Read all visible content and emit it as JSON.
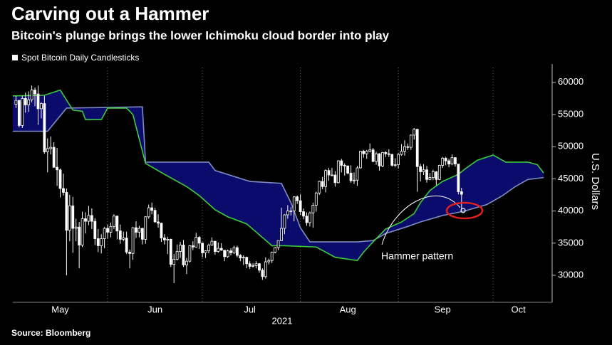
{
  "chart_data": {
    "type": "candlestick",
    "title": "Carving out a Hammer",
    "subtitle": "Bitcoin's plunge brings the lower Ichimoku cloud border into play",
    "source": "Source: Bloomberg",
    "xlabel": "2021",
    "ylabel": "U.S. Dollars",
    "annotation": "Hammer pattern",
    "xlim": [
      2,
      172
    ],
    "ylim": [
      25800,
      62300
    ],
    "xticks": [
      {
        "value": 17,
        "label": "May"
      },
      {
        "value": 47,
        "label": "Jun"
      },
      {
        "value": 77,
        "label": "Jul"
      },
      {
        "value": 108,
        "label": "Aug"
      },
      {
        "value": 138,
        "label": "Sep"
      },
      {
        "value": 162,
        "label": "Oct"
      }
    ],
    "xgrid": [
      32,
      62,
      93,
      124,
      154
    ],
    "yticks": [
      30000,
      35000,
      40000,
      45000,
      50000,
      55000,
      60000
    ],
    "candles": {
      "name": "Spot Bitcoin Daily Candlesticks",
      "color": "#ffffff",
      "x": [
        3,
        4,
        5,
        6,
        7,
        8,
        9,
        10,
        11,
        12,
        13,
        14,
        15,
        16,
        17,
        18,
        19,
        20,
        21,
        22,
        23,
        24,
        25,
        26,
        27,
        28,
        29,
        30,
        31,
        32,
        33,
        34,
        35,
        36,
        37,
        38,
        39,
        40,
        41,
        42,
        43,
        44,
        45,
        46,
        47,
        48,
        49,
        50,
        51,
        52,
        53,
        54,
        55,
        56,
        57,
        58,
        59,
        60,
        61,
        62,
        63,
        64,
        65,
        66,
        67,
        68,
        69,
        70,
        71,
        72,
        73,
        74,
        75,
        76,
        77,
        78,
        79,
        80,
        81,
        82,
        83,
        84,
        85,
        86,
        87,
        88,
        89,
        90,
        91,
        92,
        93,
        94,
        95,
        96,
        97,
        98,
        99,
        100,
        101,
        102,
        103,
        104,
        105,
        106,
        107,
        108,
        109,
        110,
        111,
        112,
        113,
        114,
        115,
        116,
        117,
        118,
        119,
        120,
        121,
        122,
        123,
        124,
        125,
        126,
        127,
        128,
        129,
        130,
        131,
        132,
        133,
        134,
        135,
        136,
        137,
        138,
        139,
        140,
        141,
        142,
        143,
        144
      ],
      "open": [
        56600,
        57200,
        53300,
        57500,
        56500,
        57300,
        58800,
        58200,
        55900,
        56700,
        49200,
        49700,
        49900,
        46800,
        46400,
        43500,
        42900,
        37000,
        40800,
        37300,
        37500,
        34700,
        38800,
        38400,
        39300,
        38400,
        35700,
        34600,
        35700,
        37300,
        36700,
        37600,
        39200,
        36900,
        35600,
        35800,
        33600,
        33400,
        37400,
        36700,
        37300,
        35600,
        39100,
        40500,
        40100,
        38300,
        38100,
        35800,
        35500,
        35600,
        31700,
        32500,
        33700,
        34700,
        31600,
        32200,
        34600,
        34400,
        35900,
        35000,
        33500,
        33800,
        34700,
        35300,
        33700,
        34200,
        33900,
        32900,
        33800,
        33500,
        34300,
        33100,
        32700,
        32800,
        31800,
        31400,
        31500,
        31800,
        30800,
        29800,
        32100,
        32300,
        33600,
        34300,
        35400,
        37300,
        39400,
        40000,
        40000,
        42200,
        41600,
        39900,
        39200,
        38200,
        39700,
        40900,
        42800,
        44600,
        43800,
        46300,
        45600,
        45600,
        44400,
        47800,
        47100,
        47000,
        45900,
        44700,
        44800,
        46700,
        49300,
        48900,
        49300,
        49500,
        47700,
        48900,
        47000,
        49100,
        48900,
        48800,
        47100,
        47200,
        48800,
        49300,
        50000,
        49900,
        51800,
        52700,
        46900,
        46100,
        46400,
        44900,
        45200,
        46100,
        44900,
        47100,
        48200,
        47800,
        47300,
        48300,
        47300,
        43000
      ],
      "high": [
        57900,
        57200,
        57900,
        58400,
        58600,
        59500,
        59200,
        59500,
        56900,
        57900,
        51300,
        51600,
        50700,
        49800,
        46600,
        45800,
        43500,
        42500,
        42200,
        38800,
        38300,
        39900,
        39800,
        40800,
        40400,
        38900,
        37200,
        36400,
        37500,
        37900,
        38200,
        39500,
        39300,
        37900,
        36800,
        36800,
        34000,
        37500,
        38400,
        37700,
        37400,
        39200,
        41000,
        41300,
        40500,
        39500,
        38200,
        36400,
        36000,
        35700,
        33300,
        34800,
        35200,
        35500,
        32700,
        34700,
        35300,
        36600,
        36100,
        35100,
        33900,
        34900,
        35900,
        35300,
        35100,
        35000,
        33900,
        34000,
        34200,
        34600,
        34600,
        33300,
        33100,
        32900,
        32200,
        31900,
        32200,
        31900,
        31100,
        32800,
        32600,
        33700,
        34400,
        35400,
        40500,
        39500,
        40900,
        40600,
        42300,
        42400,
        42600,
        40400,
        39800,
        39900,
        41300,
        43000,
        44700,
        45300,
        46500,
        46700,
        46700,
        46200,
        47900,
        48100,
        47400,
        47100,
        47100,
        46000,
        47000,
        49300,
        49500,
        49500,
        50500,
        49800,
        49200,
        49000,
        49200,
        49300,
        49600,
        48900,
        48200,
        49000,
        50400,
        51000,
        50500,
        51900,
        52900,
        52800,
        47300,
        47300,
        47000,
        45900,
        46400,
        46200,
        47200,
        48400,
        48400,
        48100,
        48800,
        48300,
        47300,
        43600
      ],
      "low": [
        56000,
        53000,
        52900,
        55300,
        55400,
        56900,
        56300,
        53400,
        54400,
        48900,
        46000,
        48800,
        46700,
        43900,
        42100,
        42400,
        30000,
        35300,
        33500,
        35300,
        31100,
        34400,
        36500,
        37800,
        37200,
        34700,
        33600,
        33400,
        34200,
        35700,
        35900,
        37200,
        35600,
        34900,
        35300,
        33300,
        31100,
        32400,
        35800,
        35900,
        34800,
        34900,
        38800,
        39500,
        38200,
        37400,
        35200,
        34800,
        33300,
        31300,
        28800,
        32300,
        32700,
        31300,
        30200,
        32000,
        33900,
        34300,
        34100,
        32800,
        32700,
        33400,
        34600,
        33200,
        33500,
        33800,
        32200,
        32700,
        33100,
        33300,
        32800,
        32200,
        31600,
        31100,
        31000,
        31200,
        31100,
        30400,
        29300,
        29500,
        31700,
        31900,
        33400,
        33900,
        35300,
        36400,
        38800,
        39300,
        38400,
        41100,
        39400,
        38700,
        37700,
        37600,
        37400,
        39900,
        42500,
        43400,
        42900,
        44700,
        45400,
        43800,
        44300,
        46000,
        45500,
        45700,
        44400,
        44200,
        43900,
        46600,
        48300,
        48100,
        49100,
        47600,
        47200,
        46300,
        46800,
        48400,
        48400,
        46900,
        46800,
        46600,
        48600,
        48600,
        49500,
        49500,
        51100,
        43000,
        44600,
        45600,
        44400,
        44800,
        44800,
        44000,
        44800,
        46700,
        47100,
        46800,
        47100,
        46900,
        42600,
        40100
      ],
      "close": [
        57200,
        53300,
        57500,
        56500,
        57300,
        58800,
        58200,
        55900,
        56700,
        49200,
        49700,
        49900,
        46800,
        46400,
        43500,
        42900,
        37000,
        40800,
        37300,
        37500,
        34700,
        38800,
        38400,
        39300,
        38400,
        35700,
        34600,
        35700,
        37300,
        36700,
        37600,
        39200,
        36900,
        35600,
        35800,
        33600,
        33400,
        37400,
        36700,
        37300,
        35600,
        39100,
        40500,
        40100,
        38300,
        38100,
        35800,
        35500,
        35600,
        31700,
        32500,
        33700,
        34700,
        31600,
        32200,
        34600,
        34400,
        35900,
        35000,
        33500,
        33800,
        34700,
        35300,
        33700,
        34200,
        33900,
        32900,
        33800,
        33500,
        34300,
        33100,
        32700,
        32800,
        31800,
        31400,
        31500,
        31800,
        30800,
        29800,
        32100,
        32300,
        33600,
        34300,
        35400,
        37300,
        39400,
        40000,
        40000,
        42200,
        41600,
        39900,
        39200,
        38200,
        39700,
        40900,
        42800,
        44600,
        43800,
        46300,
        45600,
        45600,
        44400,
        47800,
        47100,
        47000,
        45900,
        44700,
        44800,
        46700,
        49300,
        48900,
        49300,
        49500,
        47700,
        48900,
        47000,
        49100,
        48900,
        48800,
        47100,
        47200,
        48800,
        49300,
        50000,
        49900,
        51800,
        52700,
        46900,
        46100,
        46400,
        44900,
        45200,
        46100,
        44900,
        47100,
        48200,
        47800,
        47300,
        48300,
        47300,
        43000,
        42600
      ]
    },
    "cloud": {
      "color": "#0b0b6b",
      "span_a": {
        "color": "#3ccc3c",
        "x": [
          2,
          12,
          17,
          21,
          24,
          25,
          30,
          32,
          38,
          40,
          44,
          50,
          57,
          61,
          66,
          70,
          76,
          84,
          88,
          98,
          104,
          111,
          113,
          116,
          120,
          125,
          129,
          131,
          134,
          138,
          143,
          145,
          149,
          154,
          158,
          165,
          168,
          170
        ],
        "values": [
          57900,
          58000,
          58800,
          55700,
          55500,
          54200,
          54200,
          56000,
          56000,
          55000,
          47400,
          45700,
          43800,
          42400,
          40200,
          39100,
          38000,
          34600,
          34600,
          34400,
          32800,
          32300,
          33600,
          35200,
          37200,
          38300,
          39600,
          41300,
          43200,
          44600,
          45700,
          46500,
          47900,
          48700,
          47600,
          47600,
          47200,
          45900
        ]
      },
      "span_b": {
        "color": "#7d8cc4",
        "x": [
          2,
          13,
          19,
          43,
          44,
          64,
          66,
          77,
          87,
          90,
          93,
          96,
          111,
          116,
          120,
          127,
          131,
          138,
          145,
          152,
          157,
          161,
          165,
          170
        ],
        "values": [
          52400,
          52400,
          56000,
          56200,
          47600,
          47600,
          46300,
          44600,
          44300,
          41300,
          37400,
          35200,
          35200,
          35400,
          36500,
          37600,
          38300,
          39300,
          40000,
          41000,
          42400,
          43800,
          44900,
          45200
        ]
      }
    }
  }
}
